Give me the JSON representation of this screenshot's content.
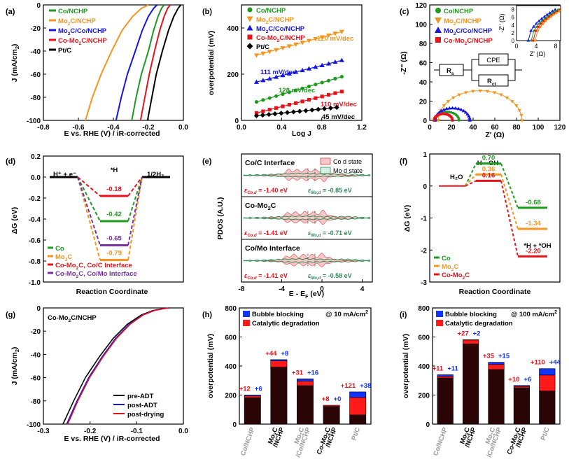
{
  "palette": {
    "co": "#1e9a1e",
    "mo2c": "#f7941d",
    "mo2c_co": "#1616e0",
    "co_mo2c": "#e8121a",
    "ptc": "#000000",
    "purple": "#7b2fa6",
    "dark": "#2b0505",
    "blue": "#1133ff",
    "red": "#ff1a1a",
    "codfill": "#f7c6c6",
    "mod": "#2e8b57",
    "gray": "#9b9b9b"
  },
  "chart_data": [
    {
      "id": "a",
      "panel_label": "(a)",
      "type": "line",
      "xlabel": "E vs. RHE (V) / iR-corrected",
      "ylabel": "J (mA/cm²)",
      "xlim": [
        -0.8,
        0.0
      ],
      "ylim": [
        -100,
        0
      ],
      "xticks": [
        "-0.8",
        "-0.6",
        "-0.4",
        "-0.2",
        "0.0"
      ],
      "xtick_values": [
        -0.8,
        -0.6,
        -0.4,
        -0.2,
        0.0
      ],
      "yticks": [
        "0",
        "-20",
        "-40",
        "-60",
        "-80",
        "-100"
      ],
      "ytick_values": [
        0,
        -20,
        -40,
        -60,
        -80,
        -100
      ],
      "series": [
        {
          "name": "Co/NCHP",
          "color": "#1e9a1e",
          "x": [
            -0.295,
            -0.27,
            -0.24,
            -0.2,
            -0.17,
            -0.145,
            -0.125,
            -0.11
          ],
          "y": [
            -100,
            -80,
            -60,
            -40,
            -22,
            -10,
            -3,
            0
          ]
        },
        {
          "name": "Mo2C/NCHP",
          "color": "#f7941d",
          "x": [
            -0.56,
            -0.52,
            -0.47,
            -0.41,
            -0.35,
            -0.29,
            -0.24,
            -0.2
          ],
          "y": [
            -100,
            -80,
            -60,
            -40,
            -22,
            -10,
            -3,
            0
          ]
        },
        {
          "name": "Mo2C/Co/NCHP",
          "color": "#1616e0",
          "x": [
            -0.385,
            -0.355,
            -0.32,
            -0.275,
            -0.235,
            -0.2,
            -0.17,
            -0.15
          ],
          "y": [
            -100,
            -80,
            -60,
            -40,
            -22,
            -10,
            -3,
            0
          ]
        },
        {
          "name": "Co-Mo2C/NCHP",
          "color": "#e8121a",
          "x": [
            -0.245,
            -0.22,
            -0.195,
            -0.165,
            -0.135,
            -0.11,
            -0.09,
            -0.075
          ],
          "y": [
            -100,
            -80,
            -60,
            -40,
            -22,
            -10,
            -3,
            0
          ]
        },
        {
          "name": "Pt/C",
          "color": "#000000",
          "x": [
            -0.205,
            -0.18,
            -0.155,
            -0.12,
            -0.085,
            -0.055,
            -0.03,
            -0.015
          ],
          "y": [
            -100,
            -80,
            -60,
            -40,
            -22,
            -10,
            -3,
            0
          ]
        }
      ],
      "legend": [
        {
          "pre": "Co/NCHP",
          "sub": "",
          "post": ""
        },
        {
          "pre": "Mo",
          "sub": "2",
          "post": "C/NCHP"
        },
        {
          "pre": "Mo",
          "sub": "2",
          "post": "C/Co/NCHP"
        },
        {
          "pre": "Co-Mo",
          "sub": "2",
          "post": "C/NCHP"
        },
        {
          "pre": "Pt/C",
          "sub": "",
          "post": ""
        }
      ]
    },
    {
      "id": "b",
      "panel_label": "(b)",
      "type": "scatter",
      "xlabel": "Log J",
      "ylabel": "overpotential (mV)",
      "xlim": [
        0.0,
        1.2
      ],
      "ylim": [
        0,
        500
      ],
      "xticks": [
        "0.0",
        "0.4",
        "0.8",
        "1.2"
      ],
      "xtick_values": [
        0.0,
        0.4,
        0.8,
        1.2
      ],
      "yticks": [
        "0",
        "200",
        "400"
      ],
      "ytick_values": [
        0,
        200,
        400
      ],
      "series": [
        {
          "name": "Co/NCHP",
          "marker": "circle",
          "color": "#1e9a1e",
          "slope": "128 mV/dec",
          "x0": 0.15,
          "x1": 1.0,
          "y0": 80,
          "y1": 189
        },
        {
          "name": "Mo2C/NCHP",
          "marker": "triangle-down",
          "color": "#f7941d",
          "slope": "120 mV/dec",
          "x0": 0.15,
          "x1": 1.0,
          "y0": 282,
          "y1": 384
        },
        {
          "name": "Mo2C/Co/NCHP",
          "marker": "triangle-up",
          "color": "#1616e0",
          "slope": "111 mV/dec",
          "x0": 0.15,
          "x1": 1.0,
          "y0": 166,
          "y1": 260
        },
        {
          "name": "Co-Mo2C/NCHP",
          "marker": "square",
          "color": "#e8121a",
          "slope": "110 mV/dec",
          "x0": 0.15,
          "x1": 1.0,
          "y0": 32,
          "y1": 125
        },
        {
          "name": "Pt/C",
          "marker": "diamond",
          "color": "#000000",
          "slope": "45 mV/dec",
          "x0": 0.15,
          "x1": 0.95,
          "y0": 20,
          "y1": 56
        }
      ],
      "legend": [
        {
          "pre": "Co/NCHP",
          "sub": "",
          "post": ""
        },
        {
          "pre": "Mo",
          "sub": "2",
          "post": "C/NCHP"
        },
        {
          "pre": "Mo",
          "sub": "2",
          "post": "C/Co/NCHP"
        },
        {
          "pre": "Co-Mo",
          "sub": "2",
          "post": "C/NCHP"
        },
        {
          "pre": "Pt/C",
          "sub": "",
          "post": ""
        }
      ]
    },
    {
      "id": "c",
      "panel_label": "(c)",
      "type": "scatter",
      "xlabel": "Z' (Ω)",
      "ylabel": "-Z'' (Ω)",
      "xlim": [
        0,
        120
      ],
      "ylim": [
        0,
        120
      ],
      "xticks": [
        "0",
        "20",
        "40",
        "60",
        "80",
        "100",
        "120"
      ],
      "xtick_values": [
        0,
        20,
        40,
        60,
        80,
        100,
        120
      ],
      "yticks": [
        "0",
        "20",
        "40",
        "60",
        "80",
        "100",
        "120"
      ],
      "ytick_values": [
        0,
        20,
        40,
        60,
        80,
        100,
        120
      ],
      "semicircles": [
        {
          "name": "Co/NCHP",
          "color": "#1e9a1e",
          "marker": "circle",
          "start": 5,
          "end": 27
        },
        {
          "name": "Mo2C/NCHP",
          "color": "#f7941d",
          "marker": "triangle-down",
          "start": 8,
          "end": 85
        },
        {
          "name": "Mo2C/Co/NCHP",
          "color": "#1616e0",
          "marker": "triangle-up",
          "start": 5,
          "end": 37
        },
        {
          "name": "Co-Mo2C/NCHP",
          "color": "#e8121a",
          "marker": "square",
          "start": 4,
          "end": 21
        }
      ],
      "inset": {
        "xlabel": "Z' (Ω)",
        "ylabel": "-Z'' (Ω)",
        "xticks": [
          "0",
          "4",
          "8"
        ],
        "yticks": [
          "0",
          "2",
          "4",
          "6",
          "8"
        ],
        "xlim": [
          0,
          9
        ],
        "ylim": [
          0,
          9
        ]
      },
      "circuit": {
        "rs": "Rs",
        "cpe": "CPE",
        "rct": "Rct"
      },
      "legend": [
        {
          "pre": "Co/NCHP",
          "sub": "",
          "post": ""
        },
        {
          "pre": "Mo",
          "sub": "2",
          "post": "C/NCHP"
        },
        {
          "pre": "Mo",
          "sub": "2",
          "post": "C/Co/NCHP"
        },
        {
          "pre": "Co-Mo",
          "sub": "2",
          "post": "C/NCHP"
        }
      ]
    },
    {
      "id": "d",
      "panel_label": "(d)",
      "type": "energy-diagram",
      "xlabel": "Reaction Coordinate",
      "ylabel": "ΔG (eV)",
      "ylim": [
        -1.0,
        0.2
      ],
      "yticks": [
        "0.2",
        "0.0",
        "-0.2",
        "-0.4",
        "-0.6",
        "-0.8",
        "-1.0"
      ],
      "ytick_values": [
        0.2,
        0.0,
        -0.2,
        -0.4,
        -0.6,
        -0.8,
        -1.0
      ],
      "state_labels": {
        "initial": "H⁺ + e⁻",
        "intermediate": "*H",
        "final": "1/2H₂"
      },
      "levels": [
        {
          "name": "Co",
          "value": -0.42,
          "label": "-0.42",
          "color": "#1e9a1e"
        },
        {
          "name": "Mo2C",
          "value": -0.79,
          "label": "-0.79",
          "color": "#f7941d"
        },
        {
          "name": "Co-Mo2C, Co/C Interface",
          "value": -0.18,
          "label": "-0.18",
          "color": "#e8121a"
        },
        {
          "name": "Co-Mo2C, Co/Mo Interface",
          "value": -0.65,
          "label": "-0.65",
          "color": "#7b2fa6"
        }
      ],
      "legend": [
        {
          "pre": "Co",
          "sub": "",
          "post": ""
        },
        {
          "pre": "Mo",
          "sub": "2",
          "post": "C"
        },
        {
          "pre": "Co-Mo",
          "sub": "2",
          "post": "C, Co/C Interface"
        },
        {
          "pre": "Co-Mo",
          "sub": "2",
          "post": "C, Co/Mo Interface"
        }
      ]
    },
    {
      "id": "e",
      "panel_label": "(e)",
      "type": "area",
      "xlabel": "E - E_F (eV)",
      "ylabel": "PDOS (A.U.)",
      "xlim": [
        -8,
        5
      ],
      "xticks": [
        "-8",
        "-4",
        "0",
        "4"
      ],
      "xtick_values": [
        -8,
        -4,
        0,
        4
      ],
      "legend": [
        "Co d state",
        "Mo d state"
      ],
      "subpanels": [
        {
          "title": "Co/C Interface",
          "eps_co": "-1.40 eV",
          "eps_mo": "-0.85 eV"
        },
        {
          "title": "Co-Mo2C",
          "eps_co": "-1.41 eV",
          "eps_mo": "-0.71 eV"
        },
        {
          "title": "Co/Mo Interface",
          "eps_co": "-1.41 eV",
          "eps_mo": "-0.58 eV"
        }
      ]
    },
    {
      "id": "f",
      "panel_label": "(f)",
      "type": "energy-diagram",
      "xlabel": "Reaction Coordinate",
      "ylabel": "ΔG (eV)",
      "ylim": [
        -3,
        1
      ],
      "yticks": [
        "1",
        "0",
        "-1",
        "-2",
        "-3"
      ],
      "ytick_values": [
        1,
        0,
        -1,
        -2,
        -3
      ],
      "state_labels": {
        "initial": "H₂O",
        "ts": "H···OH",
        "final": "*H + *OH"
      },
      "series": [
        {
          "name": "Co",
          "ts": 0.7,
          "ts_label": "0.70",
          "final": -0.68,
          "final_label": "-0.68",
          "color": "#1e9a1e"
        },
        {
          "name": "Mo2C",
          "ts": 0.36,
          "ts_label": "0.36",
          "final": -1.34,
          "final_label": "-1.34",
          "color": "#f7941d"
        },
        {
          "name": "Co-Mo2C",
          "ts": 0.16,
          "ts_label": "0.16",
          "final": -2.2,
          "final_label": "-2.20",
          "color": "#e8121a"
        }
      ],
      "legend": [
        {
          "pre": "Co",
          "sub": "",
          "post": ""
        },
        {
          "pre": "Mo",
          "sub": "2",
          "post": "C"
        },
        {
          "pre": "Co-Mo",
          "sub": "2",
          "post": "C"
        }
      ]
    },
    {
      "id": "g",
      "panel_label": "(g)",
      "type": "line",
      "title": "Co-Mo₂C/NCHP",
      "xlabel": "E vs. RHE (V) / iR-corrected",
      "ylabel": "J (mA/cm²)",
      "xlim": [
        -0.3,
        0.0
      ],
      "ylim": [
        -100,
        0
      ],
      "xticks": [
        "-0.3",
        "-0.2",
        "-0.1",
        "0.0"
      ],
      "xtick_values": [
        -0.3,
        -0.2,
        -0.1,
        0.0
      ],
      "yticks": [
        "0",
        "-20",
        "-40",
        "-60",
        "-80",
        "-100"
      ],
      "ytick_values": [
        0,
        -20,
        -40,
        -60,
        -80,
        -100
      ],
      "series": [
        {
          "name": "pre-ADT",
          "color": "#000000",
          "x": [
            -0.258,
            -0.235,
            -0.21,
            -0.18,
            -0.15,
            -0.12,
            -0.09,
            -0.065,
            -0.045,
            -0.03
          ],
          "y": [
            -100,
            -80,
            -60,
            -42,
            -26,
            -14,
            -6,
            -2.2,
            -0.7,
            0
          ]
        },
        {
          "name": "post-ADT",
          "color": "#1616e0",
          "x": [
            -0.25,
            -0.228,
            -0.203,
            -0.174,
            -0.145,
            -0.116,
            -0.087,
            -0.063,
            -0.044,
            -0.03
          ],
          "y": [
            -100,
            -80,
            -60,
            -42,
            -26,
            -14,
            -6,
            -2.2,
            -0.7,
            0
          ]
        },
        {
          "name": "post-drying",
          "color": "#e8121a",
          "x": [
            -0.248,
            -0.226,
            -0.201,
            -0.172,
            -0.143,
            -0.114,
            -0.086,
            -0.062,
            -0.043,
            -0.03
          ],
          "y": [
            -100,
            -80,
            -60,
            -42,
            -26,
            -14,
            -6,
            -2.2,
            -0.7,
            0
          ]
        }
      ]
    },
    {
      "id": "h",
      "panel_label": "(h)",
      "type": "bar",
      "annotation": "@ 10 mA/cm²",
      "ylabel": "overpotential (mV)",
      "ylim": [
        0,
        800
      ],
      "yticks": [
        "0",
        "200",
        "400",
        "600",
        "800"
      ],
      "ytick_values": [
        0,
        200,
        400,
        600,
        800
      ],
      "categories": [
        {
          "lines": [
            "Co/NCHP"
          ],
          "color": "#9b9b9b"
        },
        {
          "lines": [
            "Mo2C",
            "/NCHP"
          ],
          "color": "#000000"
        },
        {
          "lines": [
            "Mo2C",
            "/Co/NCHP"
          ],
          "color": "#9b9b9b"
        },
        {
          "lines": [
            "Co-Mo2C",
            "/NCHP"
          ],
          "color": "#000000"
        },
        {
          "lines": [
            "Pt/C"
          ],
          "color": "#9b9b9b"
        }
      ],
      "series": [
        {
          "name": "base",
          "values": [
            182,
            392,
            265,
            122,
            63
          ]
        },
        {
          "name": "Catalytic degradation",
          "values": [
            12,
            44,
            31,
            8,
            121
          ]
        },
        {
          "name": "Bubble blocking",
          "values": [
            6,
            8,
            16,
            0,
            38
          ]
        }
      ],
      "data_labels": [
        [
          "+12",
          "+6"
        ],
        [
          "+44",
          "+8"
        ],
        [
          "+31",
          "+16"
        ],
        [
          "+8",
          "+0"
        ],
        [
          "+121",
          "+38"
        ]
      ],
      "legend": [
        "Bubble blocking",
        "Catalytic degradation"
      ]
    },
    {
      "id": "i",
      "panel_label": "(i)",
      "type": "bar",
      "annotation": "@ 100 mA/cm²",
      "ylabel": "overpotential (mV)",
      "ylim": [
        0,
        800
      ],
      "yticks": [
        "0",
        "200",
        "400",
        "600",
        "800"
      ],
      "ytick_values": [
        0,
        200,
        400,
        600,
        800
      ],
      "categories": [
        {
          "lines": [
            "Co/NCHP"
          ],
          "color": "#9b9b9b"
        },
        {
          "lines": [
            "Mo2C",
            "/NCHP"
          ],
          "color": "#000000"
        },
        {
          "lines": [
            "Mo2C",
            "/Co/NCHP"
          ],
          "color": "#9b9b9b"
        },
        {
          "lines": [
            "Co-Mo2C",
            "/NCHP"
          ],
          "color": "#000000"
        },
        {
          "lines": [
            "Pt/C"
          ],
          "color": "#9b9b9b"
        }
      ],
      "series": [
        {
          "name": "base",
          "values": [
            318,
            552,
            376,
            250,
            228
          ]
        },
        {
          "name": "Catalytic degradation",
          "values": [
            11,
            27,
            35,
            10,
            110
          ]
        },
        {
          "name": "Bubble blocking",
          "values": [
            11,
            2,
            15,
            6,
            44
          ]
        }
      ],
      "data_labels": [
        [
          "+11",
          "+11"
        ],
        [
          "+27",
          "+2"
        ],
        [
          "+35",
          "+15"
        ],
        [
          "+10",
          "+6"
        ],
        [
          "+110",
          "+44"
        ]
      ],
      "legend": [
        "Bubble blocking",
        "Catalytic degradation"
      ]
    }
  ]
}
